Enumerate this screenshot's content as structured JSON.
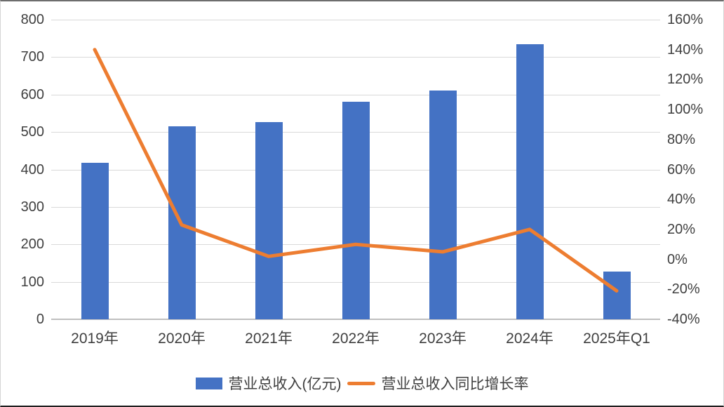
{
  "chart_data": {
    "type": "combo-bar-line",
    "title": "",
    "categories": [
      "2019年",
      "2020年",
      "2021年",
      "2022年",
      "2023年",
      "2024年",
      "2025年Q1"
    ],
    "series": [
      {
        "name": "营业总收入(亿元)",
        "type": "bar",
        "axis": "left",
        "color": "#4472C4",
        "values": [
          417,
          516,
          526,
          580,
          611,
          735,
          128
        ]
      },
      {
        "name": "营业总收入同比增长率",
        "type": "line",
        "axis": "right",
        "color": "#ED7D31",
        "unit": "%",
        "values": [
          140,
          23,
          2,
          10,
          5,
          20,
          -21
        ]
      }
    ],
    "left_axis": {
      "min": 0,
      "max": 800,
      "step": 100,
      "tick_labels": [
        "800",
        "700",
        "600",
        "500",
        "400",
        "300",
        "200",
        "100",
        "0"
      ]
    },
    "right_axis": {
      "min": -40,
      "max": 160,
      "step": 20,
      "unit": "%",
      "tick_labels": [
        "160%",
        "140%",
        "120%",
        "100%",
        "80%",
        "60%",
        "40%",
        "20%",
        "0%",
        "-20%",
        "-40%"
      ]
    },
    "legend": {
      "position": "bottom",
      "items": [
        "营业总收入(亿元)",
        "营业总收入同比增长率"
      ]
    },
    "grid": {
      "show": true,
      "follows": "left_axis",
      "color": "#D9D9D9",
      "baseline_color": "#BFBFBF"
    },
    "colors": {
      "bar": "#4472C4",
      "line": "#ED7D31",
      "text": "#404040",
      "background": "#FFFFFF"
    }
  }
}
